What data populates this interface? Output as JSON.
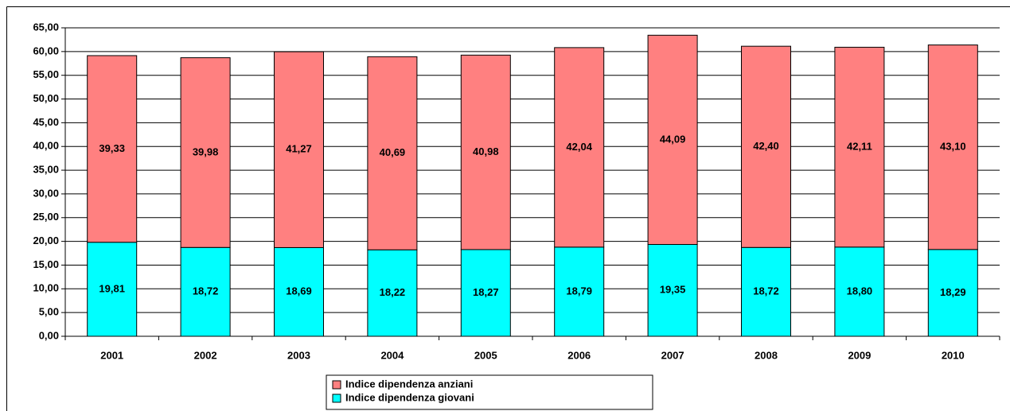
{
  "chart_data": {
    "type": "stacked_bar",
    "categories": [
      "2001",
      "2002",
      "2003",
      "2004",
      "2005",
      "2006",
      "2007",
      "2008",
      "2009",
      "2010"
    ],
    "series": [
      {
        "name": "Indice dipendenza giovani",
        "color": "#00ffff",
        "values": [
          19.81,
          18.72,
          18.69,
          18.22,
          18.27,
          18.79,
          19.35,
          18.72,
          18.8,
          18.29
        ],
        "value_labels": [
          "19,81",
          "18,72",
          "18,69",
          "18,22",
          "18,27",
          "18,79",
          "19,35",
          "18,72",
          "18,80",
          "18,29"
        ]
      },
      {
        "name": "Indice dipendenza anziani",
        "color": "#ff8080",
        "values": [
          39.33,
          39.98,
          41.27,
          40.69,
          40.98,
          42.04,
          44.09,
          42.4,
          42.11,
          43.1
        ],
        "value_labels": [
          "39,33",
          "39,98",
          "41,27",
          "40,69",
          "40,98",
          "42,04",
          "44,09",
          "42,40",
          "42,11",
          "43,10"
        ]
      }
    ],
    "ylim": [
      0,
      65
    ],
    "yticks": [
      {
        "value": 0,
        "label": "0,00"
      },
      {
        "value": 5,
        "label": "5,00"
      },
      {
        "value": 10,
        "label": "10,00"
      },
      {
        "value": 15,
        "label": "15,00"
      },
      {
        "value": 20,
        "label": "20,00"
      },
      {
        "value": 25,
        "label": "25,00"
      },
      {
        "value": 30,
        "label": "30,00"
      },
      {
        "value": 35,
        "label": "35,00"
      },
      {
        "value": 40,
        "label": "40,00"
      },
      {
        "value": 45,
        "label": "45,00"
      },
      {
        "value": 50,
        "label": "50,00"
      },
      {
        "value": 55,
        "label": "55,00"
      },
      {
        "value": 60,
        "label": "60,00"
      },
      {
        "value": 65,
        "label": "65,00"
      }
    ],
    "grid": true,
    "legend": "bottom"
  }
}
